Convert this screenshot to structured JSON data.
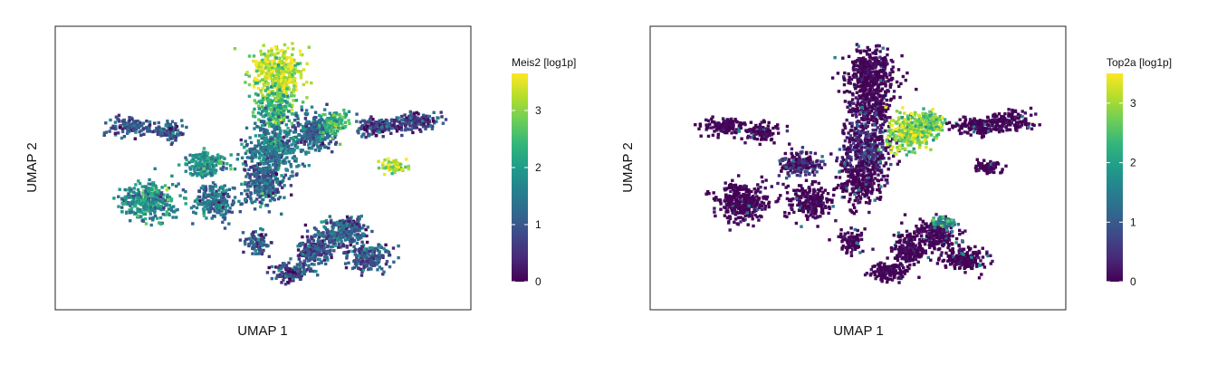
{
  "chart_data": [
    {
      "type": "scatter",
      "xlabel": "UMAP 1",
      "ylabel": "UMAP 2",
      "colorbar": {
        "title": "Meis2 [log1p]",
        "min": 0,
        "max": 3.65,
        "ticks": [
          "0",
          "1",
          "2",
          "3"
        ]
      },
      "colormap": [
        "#440154",
        "#482878",
        "#3e4989",
        "#31688e",
        "#26828e",
        "#1f9e89",
        "#35b779",
        "#6ece58",
        "#b5de2b",
        "#fde725"
      ],
      "gene": "Meis2",
      "grid": false,
      "legend": "right"
    },
    {
      "type": "scatter",
      "xlabel": "UMAP 1",
      "ylabel": "UMAP 2",
      "colorbar": {
        "title": "Top2a [log1p]",
        "min": 0,
        "max": 3.5,
        "ticks": [
          "0",
          "1",
          "2",
          "3"
        ]
      },
      "colormap": [
        "#440154",
        "#482878",
        "#3e4989",
        "#31688e",
        "#26828e",
        "#1f9e89",
        "#35b779",
        "#6ece58",
        "#b5de2b",
        "#fde725"
      ],
      "gene": "Top2a",
      "grid": false,
      "legend": "right"
    }
  ]
}
